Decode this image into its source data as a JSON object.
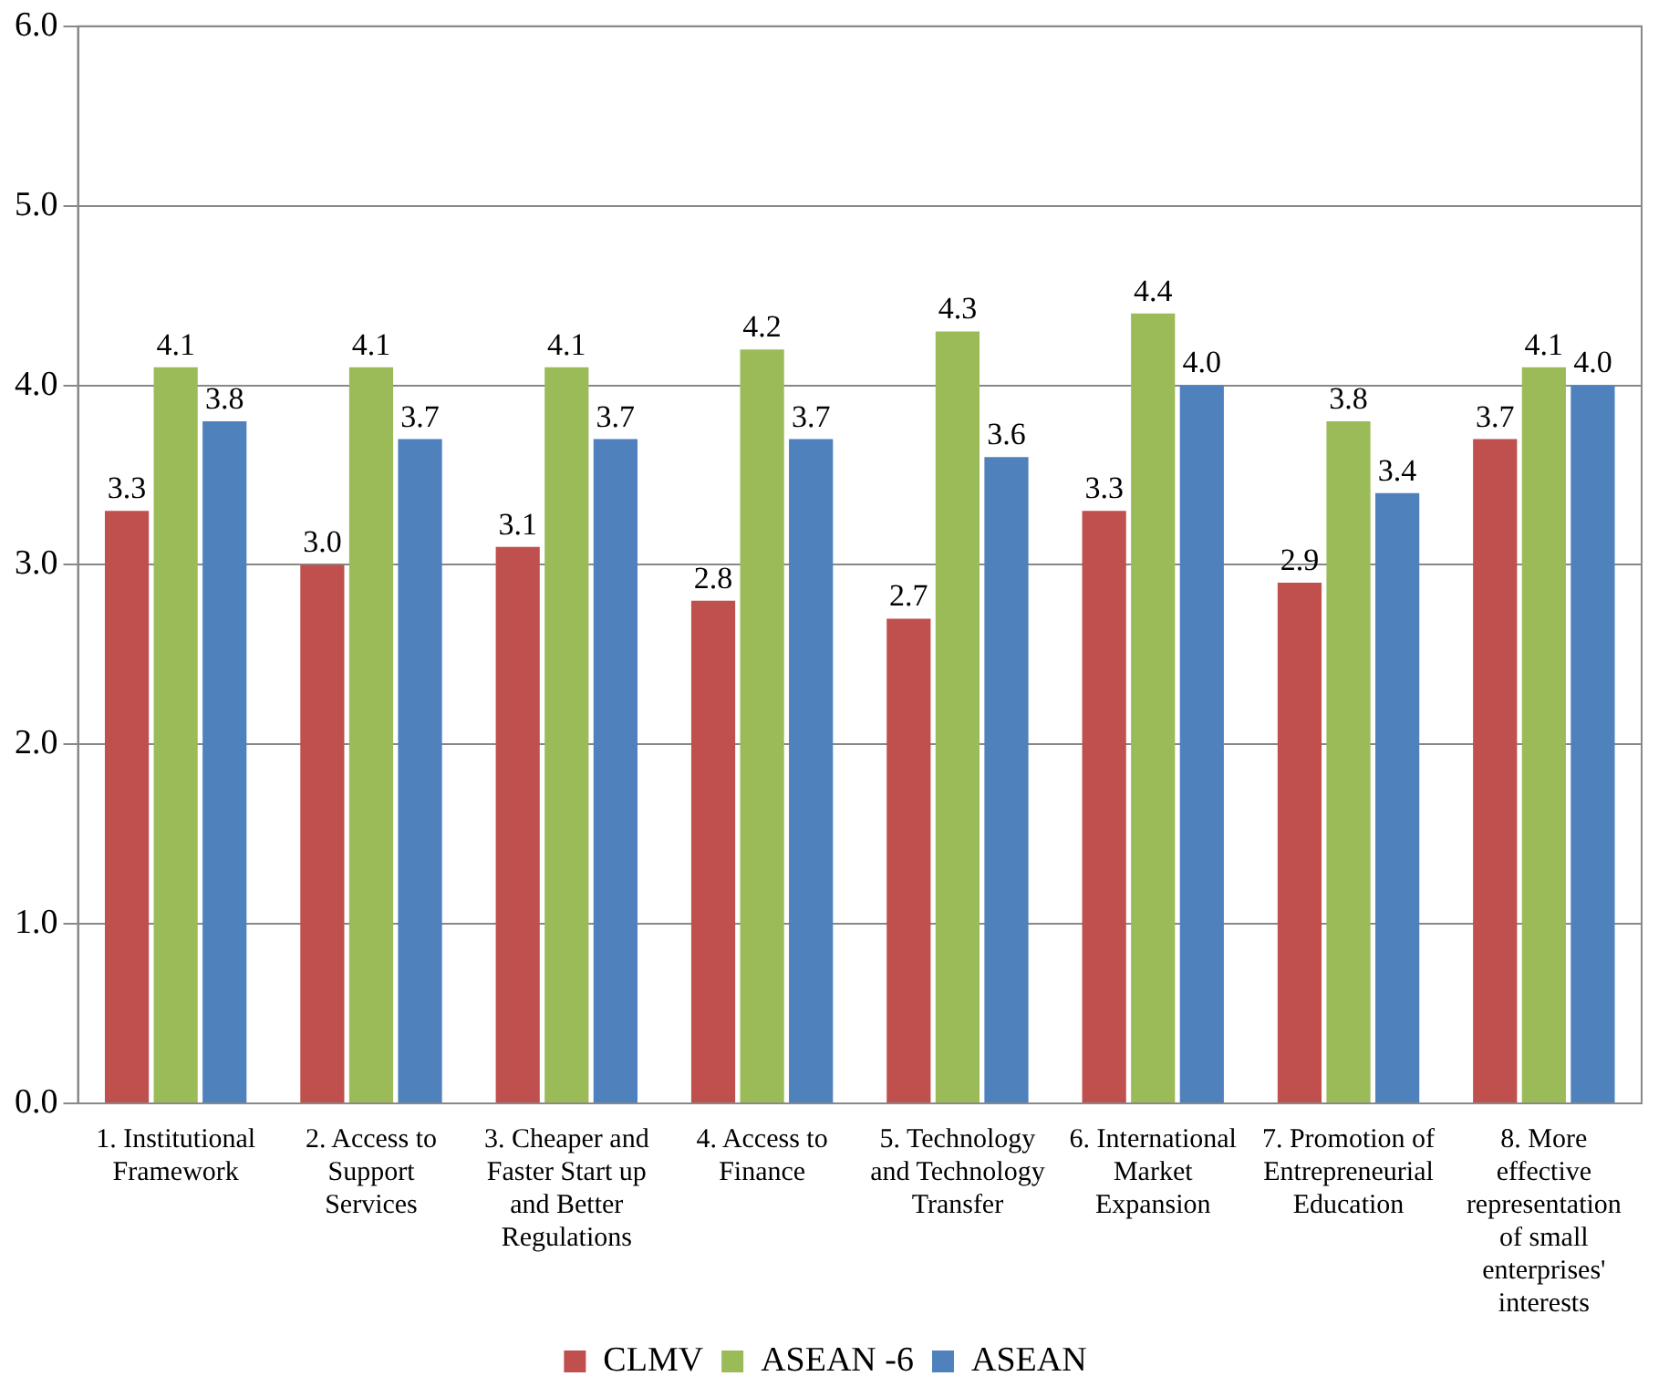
{
  "chart_data": {
    "type": "bar",
    "categories": [
      "1. Institutional Framework",
      "2. Access to Support Services",
      "3. Cheaper and Faster Start up and Better Regulations",
      "4. Access to Finance",
      "5. Technology and Technology Transfer",
      "6. International Market Expansion",
      "7. Promotion of Entrepreneurial Education",
      "8. More effective representation of small enterprises' interests"
    ],
    "series": [
      {
        "name": "CLMV",
        "color": "#c0504d",
        "values": [
          3.3,
          3.0,
          3.1,
          2.8,
          2.7,
          3.3,
          2.9,
          3.7
        ],
        "value_labels": [
          "3.3",
          "3.0",
          "3.1",
          "2.8",
          "2.7",
          "3.3",
          "2.9",
          "3.7"
        ]
      },
      {
        "name": "ASEAN -6",
        "color": "#9bbb59",
        "values": [
          4.1,
          4.1,
          4.1,
          4.2,
          4.3,
          4.4,
          3.8,
          4.1
        ],
        "value_labels": [
          "4.1",
          "4.1",
          "4.1",
          "4.2",
          "4.3",
          "4.4",
          "3.8",
          "4.1"
        ]
      },
      {
        "name": "ASEAN",
        "color": "#4f81bd",
        "values": [
          3.8,
          3.7,
          3.7,
          3.7,
          3.6,
          4.0,
          3.4,
          4.0
        ],
        "value_labels": [
          "3.8",
          "3.7",
          "3.7",
          "3.7",
          "3.6",
          "4.0",
          "3.4",
          "4.0"
        ]
      }
    ],
    "ylim": [
      0,
      6
    ],
    "yticks": [
      {
        "value": 0,
        "label": "0.0"
      },
      {
        "value": 1,
        "label": "1.0"
      },
      {
        "value": 2,
        "label": "2.0"
      },
      {
        "value": 3,
        "label": "3.0"
      },
      {
        "value": 4,
        "label": "4.0"
      },
      {
        "value": 5,
        "label": "5.0"
      },
      {
        "value": 6,
        "label": "6.0"
      }
    ],
    "grid": "y",
    "legend": "bottom"
  }
}
